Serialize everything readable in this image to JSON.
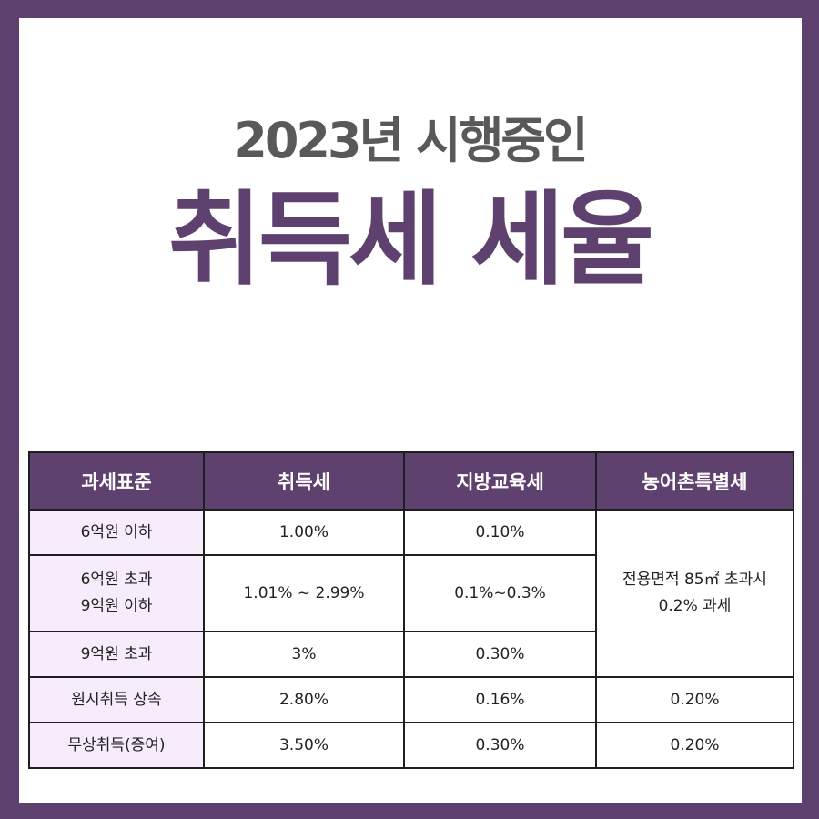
{
  "header": {
    "subtitle": "2023년 시행중인",
    "title": "취득세 세율"
  },
  "table": {
    "columns": [
      "과세표준",
      "취득세",
      "지방교육세",
      "농어촌특별세"
    ],
    "rows": [
      {
        "label_lines": [
          "6억원 이하"
        ],
        "acquisition_tax": "1.00%",
        "education_tax": "0.10%"
      },
      {
        "label_lines": [
          "6억원 초과",
          "9억원 이하"
        ],
        "acquisition_tax": "1.01% ~ 2.99%",
        "education_tax": "0.1%~0.3%"
      },
      {
        "label_lines": [
          "9억원 초과"
        ],
        "acquisition_tax": "3%",
        "education_tax": "0.30%"
      },
      {
        "label_lines": [
          "원시취득 상속"
        ],
        "acquisition_tax": "2.80%",
        "education_tax": "0.16%",
        "special_tax": "0.20%"
      },
      {
        "label_lines": [
          "무상취득(증여)"
        ],
        "acquisition_tax": "3.50%",
        "education_tax": "0.30%",
        "special_tax": "0.20%"
      }
    ],
    "merged_special_tax_lines": [
      "전용면적 85㎡ 초과시",
      "0.2% 과세"
    ]
  },
  "colors": {
    "frame": "#5e416f",
    "header_bg": "#5e416f",
    "label_bg": "#f7ecfc",
    "subtitle_text": "#595959",
    "title_text": "#5e416f"
  }
}
